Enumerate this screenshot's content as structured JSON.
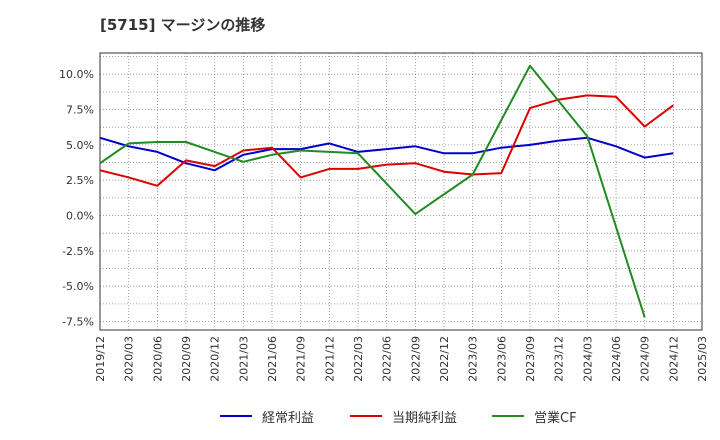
{
  "chart_data": {
    "type": "line",
    "title": "[5715]  マージンの推移",
    "xlabel": "",
    "ylabel": "",
    "x": [
      "2019/12",
      "2020/03",
      "2020/06",
      "2020/09",
      "2020/12",
      "2021/03",
      "2021/06",
      "2021/09",
      "2021/12",
      "2022/03",
      "2022/06",
      "2022/09",
      "2022/12",
      "2023/03",
      "2023/06",
      "2023/09",
      "2023/12",
      "2024/03",
      "2024/06",
      "2024/09",
      "2024/12",
      "2025/03"
    ],
    "y_ticks": [
      "10.0%",
      "7.5%",
      "5.0%",
      "2.5%",
      "0.0%",
      "-2.5%",
      "-5.0%",
      "-7.5%"
    ],
    "ylim": [
      -8.1,
      11.5
    ],
    "grid": true,
    "legend_position": "bottom",
    "series": [
      {
        "name": "経常利益",
        "color": "#0000cc",
        "values": [
          5.5,
          4.9,
          4.5,
          3.7,
          3.2,
          4.3,
          4.7,
          4.7,
          5.1,
          4.5,
          4.7,
          4.9,
          4.4,
          4.4,
          4.8,
          5.0,
          5.3,
          5.5,
          4.9,
          4.1,
          4.4,
          null
        ]
      },
      {
        "name": "当期純利益",
        "color": "#dd0000",
        "values": [
          3.2,
          2.7,
          2.1,
          3.9,
          3.5,
          4.6,
          4.8,
          2.7,
          3.3,
          3.3,
          3.6,
          3.7,
          3.1,
          2.9,
          3.0,
          7.6,
          8.2,
          8.5,
          8.4,
          6.3,
          7.8,
          null
        ]
      },
      {
        "name": "営業CF",
        "color": "#228b22",
        "values": [
          3.7,
          5.1,
          5.2,
          5.2,
          4.5,
          3.8,
          4.3,
          4.6,
          4.5,
          4.4,
          null,
          0.1,
          null,
          2.9,
          null,
          10.6,
          null,
          5.6,
          null,
          -7.2,
          null,
          null
        ]
      }
    ]
  }
}
